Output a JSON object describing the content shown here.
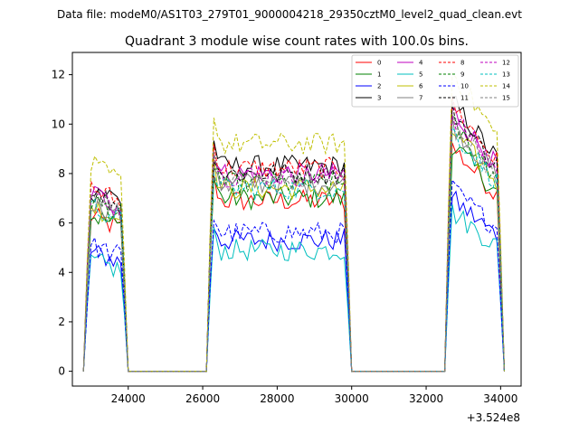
{
  "figure": {
    "suptitle": "Data file: modeM0/AS1T03_279T01_9000004218_29350cztM0_level2_quad_clean.evt"
  },
  "chart_data": {
    "type": "line",
    "title": "Quadrant 3 module wise count rates with 100.0s bins.",
    "xlabel": "",
    "ylabel": "",
    "x_offset_label": "+3.524e8",
    "xlim": [
      22500,
      34550
    ],
    "ylim": [
      -0.6,
      12.9
    ],
    "xticks": [
      24000,
      26000,
      28000,
      30000,
      32000,
      34000
    ],
    "xtick_labels": [
      "24000",
      "26000",
      "28000",
      "30000",
      "32000",
      "34000"
    ],
    "yticks": [
      0,
      2,
      4,
      6,
      8,
      10,
      12
    ],
    "ytick_labels": [
      "0",
      "2",
      "4",
      "6",
      "8",
      "10",
      "12"
    ],
    "legend_placement": "top-right",
    "legend_columns": 4,
    "active_segments": [
      {
        "start": 22850,
        "end": 23950
      },
      {
        "start": 26150,
        "end": 29950
      },
      {
        "start": 32550,
        "end": 34050
      }
    ],
    "gap_level": 0,
    "series": [
      {
        "name": "0",
        "color": "#ff0000",
        "dash": "solid",
        "base": 6.9
      },
      {
        "name": "1",
        "color": "#008000",
        "dash": "solid",
        "base": 7.0
      },
      {
        "name": "2",
        "color": "#0000ff",
        "dash": "solid",
        "base": 5.3
      },
      {
        "name": "3",
        "color": "#000000",
        "dash": "solid",
        "base": 8.3
      },
      {
        "name": "4",
        "color": "#bf00bf",
        "dash": "solid",
        "base": 8.0
      },
      {
        "name": "5",
        "color": "#00bfbf",
        "dash": "solid",
        "base": 4.9
      },
      {
        "name": "6",
        "color": "#bfbf00",
        "dash": "solid",
        "base": 7.4
      },
      {
        "name": "7",
        "color": "#808080",
        "dash": "solid",
        "base": 7.6
      },
      {
        "name": "8",
        "color": "#ff0000",
        "dash": "dashed",
        "base": 8.2
      },
      {
        "name": "9",
        "color": "#008000",
        "dash": "dashed",
        "base": 7.6
      },
      {
        "name": "10",
        "color": "#0000ff",
        "dash": "dashed",
        "base": 5.6
      },
      {
        "name": "11",
        "color": "#000000",
        "dash": "dashed",
        "base": 8.0
      },
      {
        "name": "12",
        "color": "#bf00bf",
        "dash": "dashed",
        "base": 7.9
      },
      {
        "name": "13",
        "color": "#00bfbf",
        "dash": "dashed",
        "base": 7.4
      },
      {
        "name": "14",
        "color": "#bfbf00",
        "dash": "dashed",
        "base": 9.2
      },
      {
        "name": "15",
        "color": "#808080",
        "dash": "dashed",
        "base": 7.7
      }
    ]
  }
}
